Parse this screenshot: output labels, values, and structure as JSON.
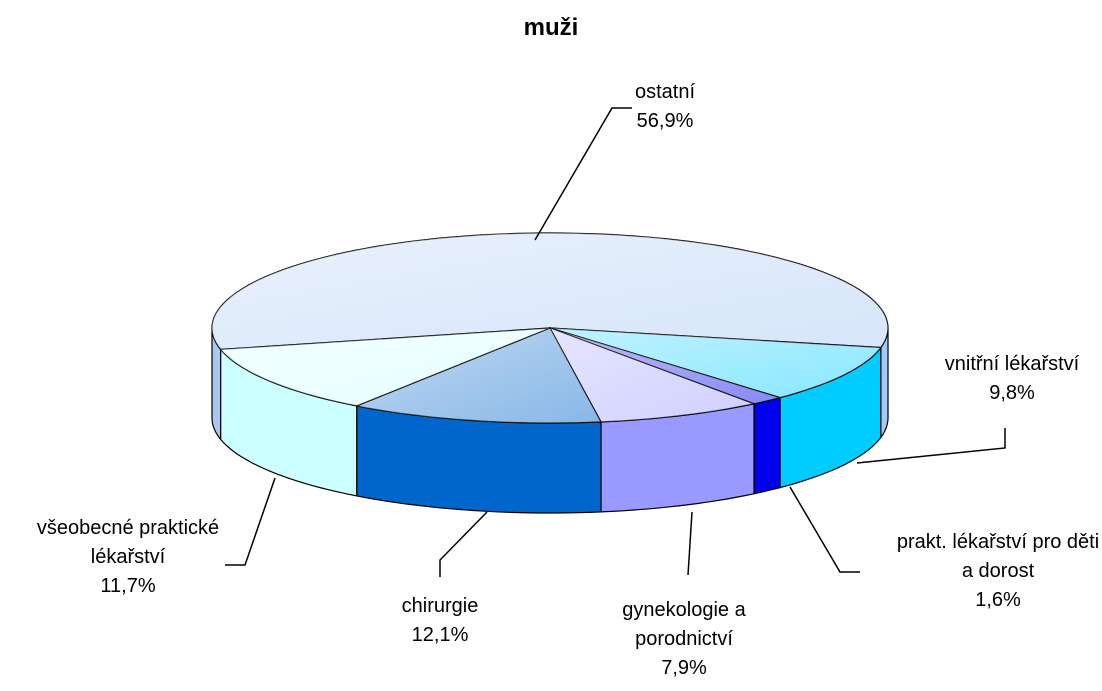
{
  "chart_data": {
    "type": "pie",
    "title": "muži",
    "categories": [
      "ostatní",
      "vnitřní lékařství",
      "prakt. lékařství pro děti a dorost",
      "gynekologie a porodnictví",
      "chirurgie",
      "všeobecné praktické lékařství"
    ],
    "values": [
      56.9,
      9.8,
      1.6,
      7.9,
      12.1,
      11.7
    ],
    "value_labels": [
      "56,9%",
      "9,8%",
      "1,6%",
      "7,9%",
      "12,1%",
      "11,7%"
    ],
    "colors": [
      "#a8c8f4",
      "#00ccff",
      "#0000ee",
      "#9999ff",
      "#0066cc",
      "#ccffff"
    ]
  }
}
